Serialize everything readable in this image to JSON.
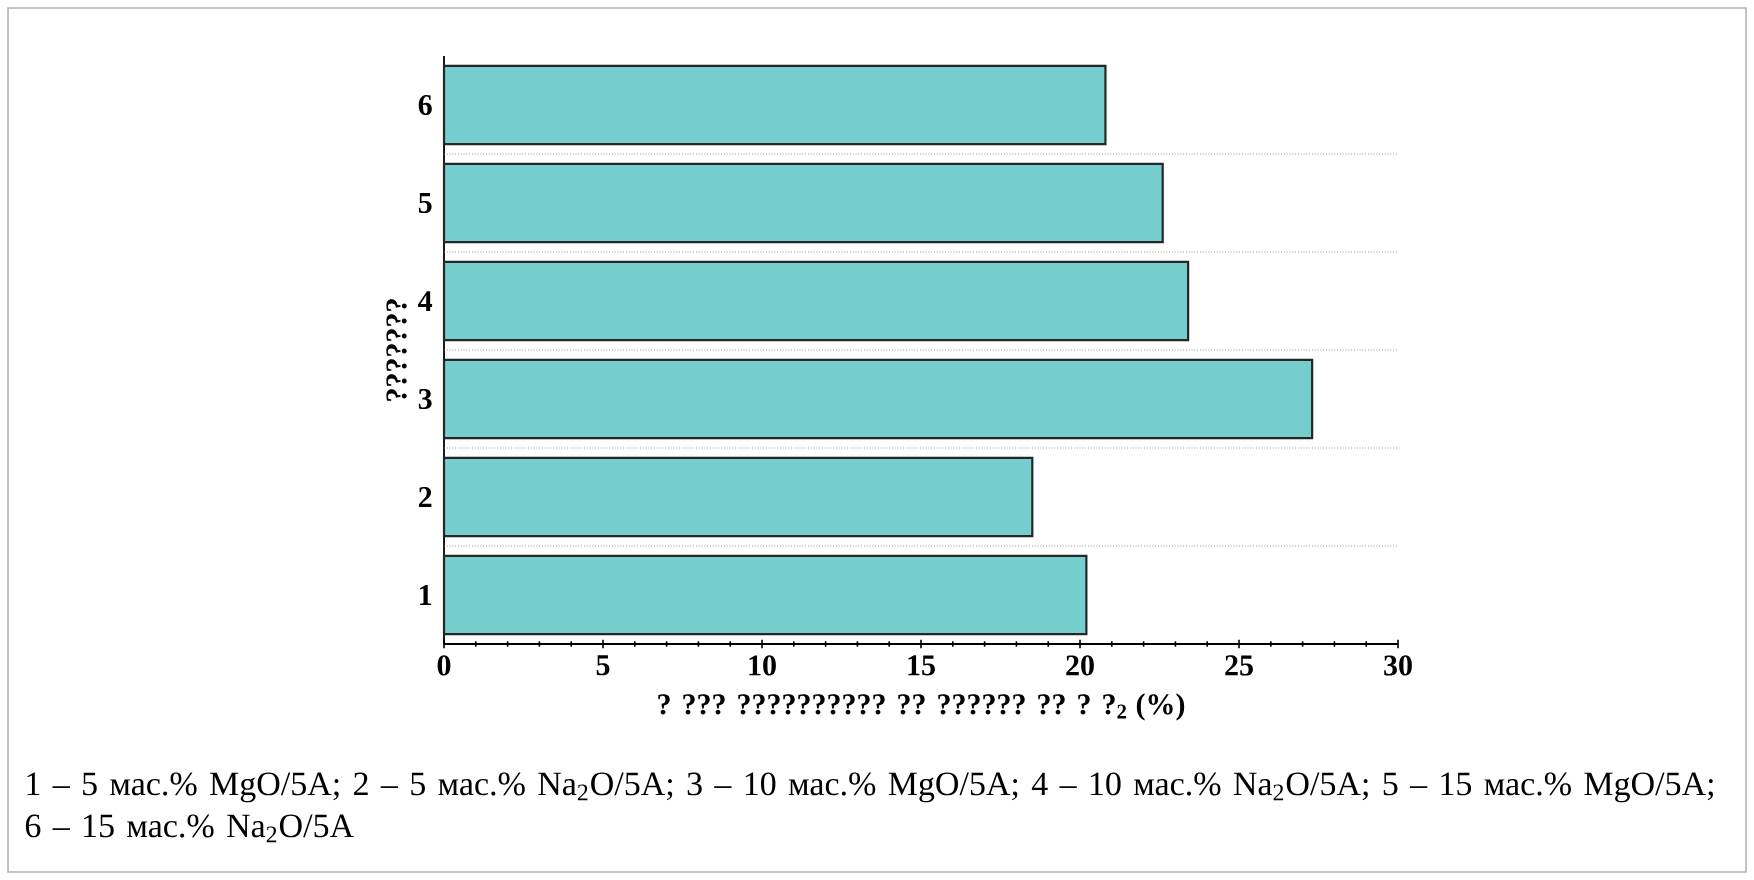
{
  "chart_data": {
    "type": "bar",
    "orientation": "horizontal",
    "categories": [
      "6",
      "5",
      "4",
      "3",
      "2",
      "1"
    ],
    "values": [
      20.8,
      22.6,
      23.4,
      27.3,
      18.5,
      20.2
    ],
    "color": "#76cdcd",
    "xlim": [
      0,
      30
    ],
    "xticks": [
      0,
      5,
      10,
      15,
      20,
      25,
      30
    ],
    "xlabel": "? ??? ?????????? ?? ?????? ?? ? ?$_{2}$ (%)",
    "ylabel": "???????",
    "grid": "y",
    "annotations": [
      "1 – 5 мас.% MgO/5A; 2 – 5 мас.% Na$_{2}$O/5A; 3 – 10 мас.% MgO/5A; 4 – 10 мас.% Na$_{2}$O/5A; 5 – 15 мас.% MgO/5A; 6 – 15 мас.% Na$_{2}$O/5A"
    ]
  }
}
